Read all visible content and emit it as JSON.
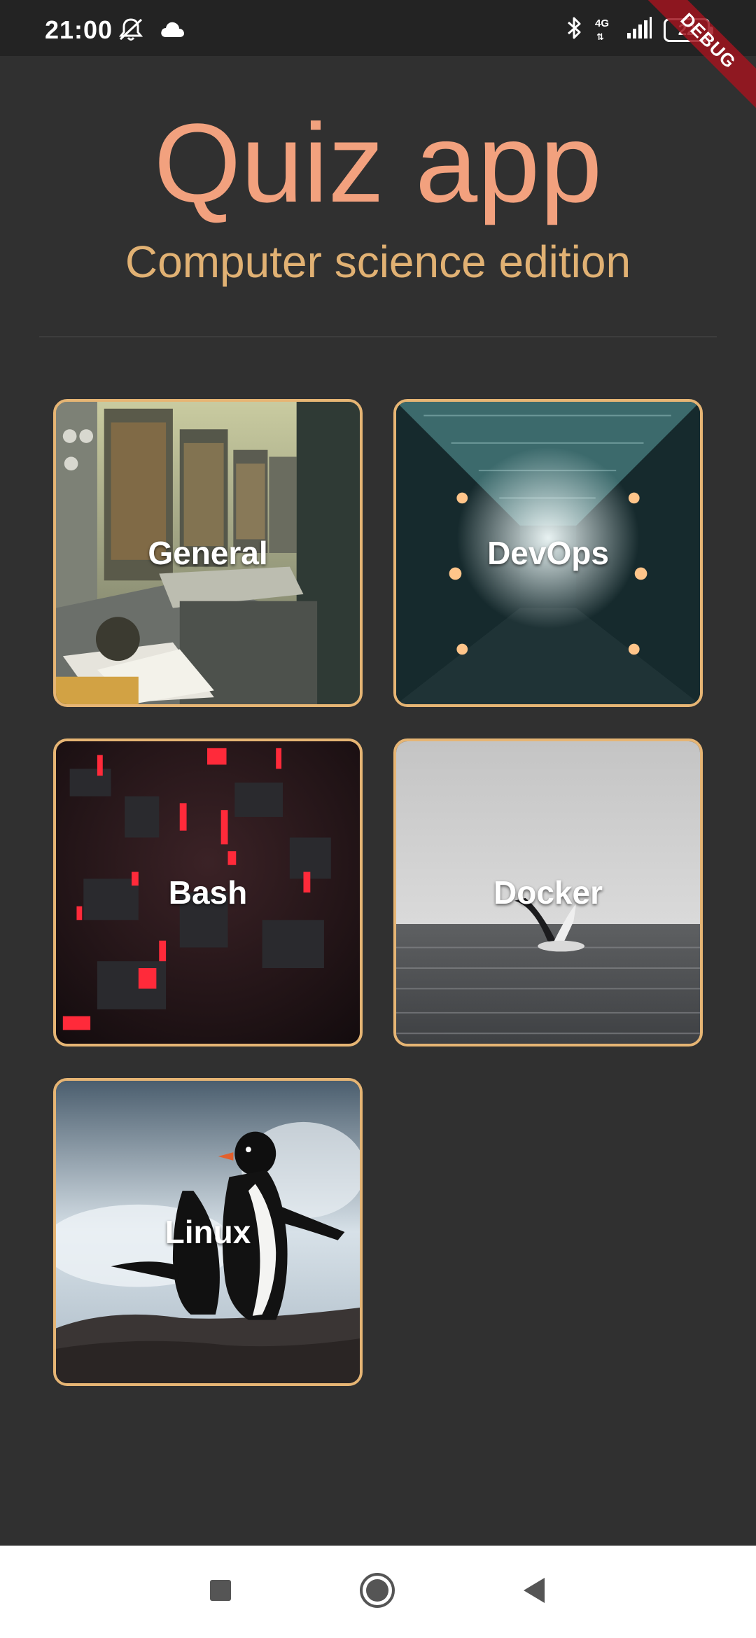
{
  "status_bar": {
    "time": "21:00",
    "network_type": "4G",
    "battery_level": "22",
    "icons": [
      "do-not-disturb-icon",
      "cloud-icon",
      "bluetooth-icon",
      "signal-icon",
      "battery-icon"
    ]
  },
  "debug_banner": "DEBUG",
  "header": {
    "title": "Quiz app",
    "subtitle": "Computer science edition"
  },
  "categories": [
    {
      "label": "General",
      "image": "vintage-computer-room"
    },
    {
      "label": "DevOps",
      "image": "server-corridor"
    },
    {
      "label": "Bash",
      "image": "red-circuit-city"
    },
    {
      "label": "Docker",
      "image": "breaching-whale"
    },
    {
      "label": "Linux",
      "image": "penguins-on-rock"
    }
  ],
  "nav_bar": {
    "icons": [
      "recents-icon",
      "home-icon",
      "back-icon"
    ]
  },
  "colors": {
    "background": "#303030",
    "status_bar": "#232323",
    "title": "#f2a17e",
    "subtitle": "#e1b173",
    "card_border": "#e6b574",
    "nav_bar": "#ffffff"
  }
}
